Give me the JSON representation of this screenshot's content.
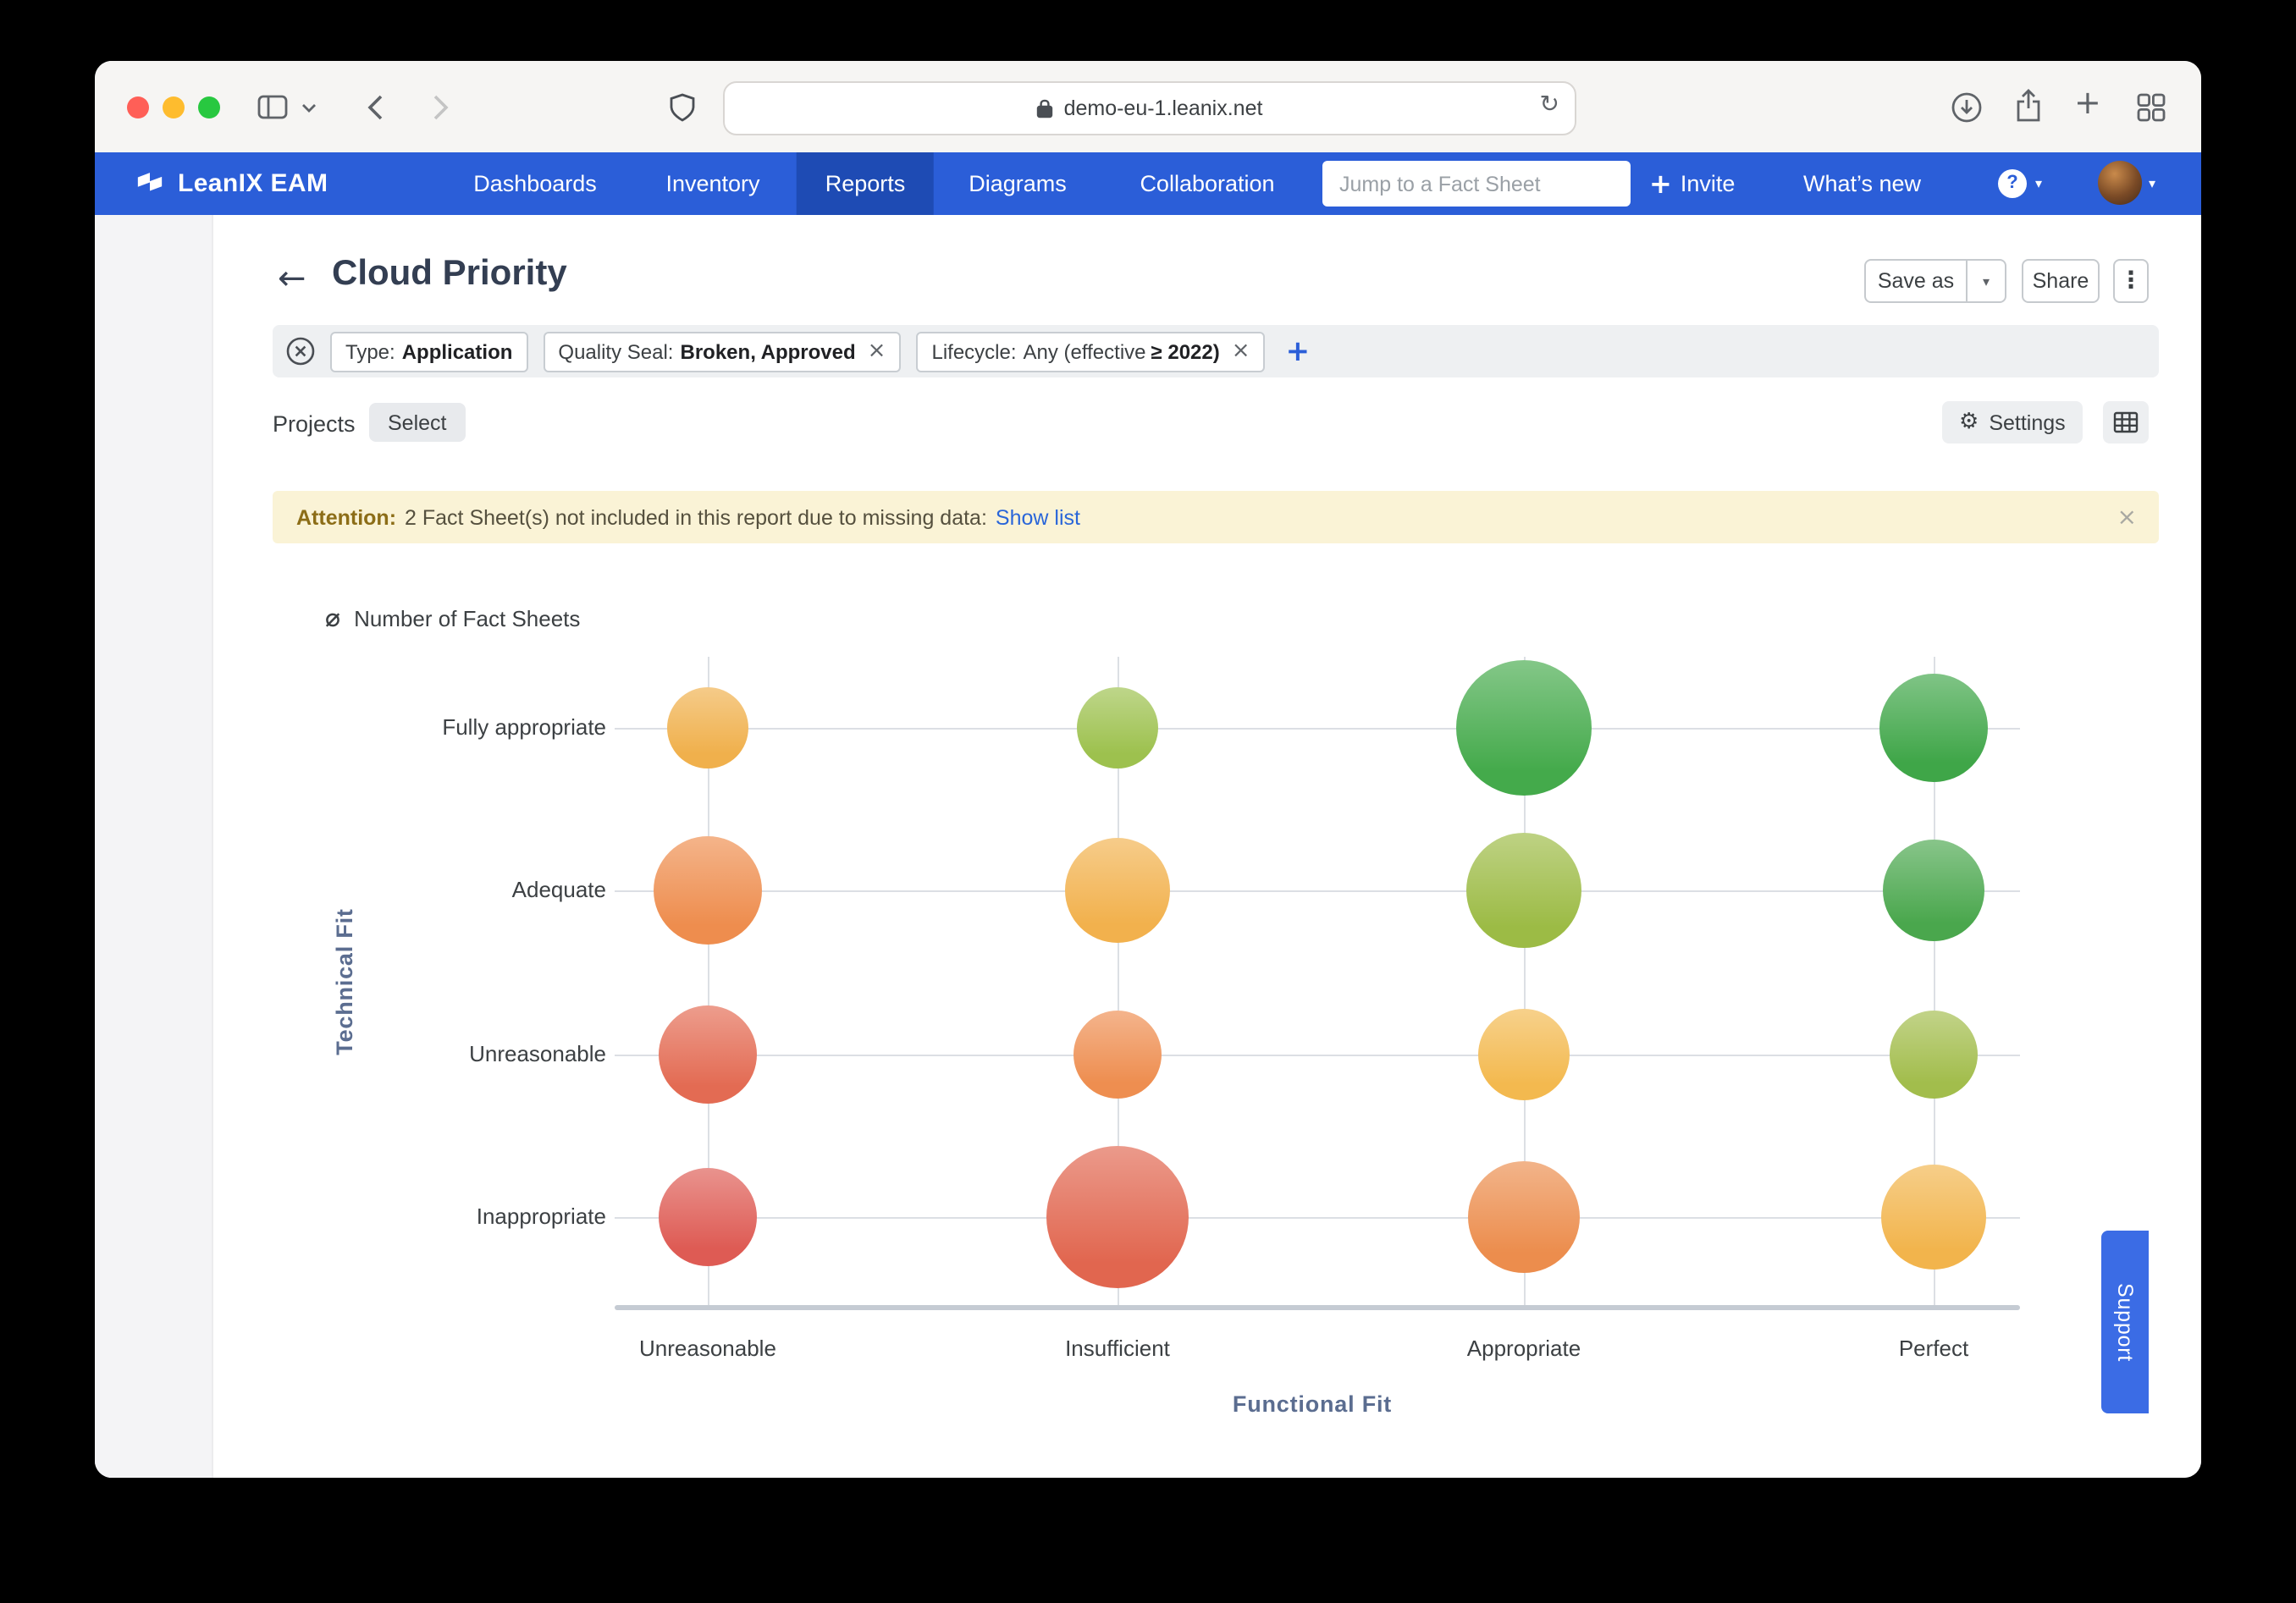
{
  "browser": {
    "url": "demo-eu-1.leanix.net"
  },
  "icons": {
    "refresh": "↻",
    "back_arrow": "←",
    "plus": "+",
    "gear": "⚙",
    "kebab": "⋮",
    "diameter": "⌀",
    "close": "×",
    "caret_down": "▾",
    "question": "?"
  },
  "colors": {
    "nav_blue": "#2b5ed8",
    "nav_active_blue": "#1e4bb4",
    "link_blue": "#2a66d9",
    "support_blue": "#3b6ce5",
    "banner_yellow": "#faf3d6"
  },
  "nav": {
    "brand": "LeanIX EAM",
    "items": [
      {
        "label": "Dashboards"
      },
      {
        "label": "Inventory"
      },
      {
        "label": "Reports"
      },
      {
        "label": "Diagrams"
      },
      {
        "label": "Collaboration"
      }
    ],
    "search_placeholder": "Jump to a Fact Sheet",
    "invite_label": "Invite",
    "whats_new_label": "What’s new"
  },
  "header": {
    "title": "Cloud Priority",
    "save_as_label": "Save as",
    "share_label": "Share"
  },
  "filters": {
    "chips": [
      {
        "label": "Type:",
        "value": "Application"
      },
      {
        "label": "Quality Seal:",
        "value": "Broken, Approved"
      },
      {
        "label": "Lifecycle:",
        "value": "Any (effective",
        "value_bold": "≥ 2022)"
      }
    ]
  },
  "subbar": {
    "projects_label": "Projects",
    "select_label": "Select",
    "settings_label": "Settings"
  },
  "banner": {
    "prefix": "Attention:",
    "text": "2 Fact Sheet(s) not included in this report due to missing data:",
    "link": "Show list"
  },
  "support_label": "Support",
  "chart_data": {
    "type": "bubble",
    "legend": "Number of Fact Sheets",
    "xlabel": "Functional Fit",
    "ylabel": "Technical Fit",
    "x_categories": [
      "Unreasonable",
      "Insufficient",
      "Appropriate",
      "Perfect"
    ],
    "y_categories": [
      "Fully appropriate",
      "Adequate",
      "Unreasonable",
      "Inappropriate"
    ],
    "bubbles": [
      {
        "x": "Unreasonable",
        "y": "Fully appropriate",
        "r": 24,
        "color": "#f0b04c"
      },
      {
        "x": "Insufficient",
        "y": "Fully appropriate",
        "r": 24,
        "color": "#9dc14e"
      },
      {
        "x": "Appropriate",
        "y": "Fully appropriate",
        "r": 40,
        "color": "#44aa4b"
      },
      {
        "x": "Perfect",
        "y": "Fully appropriate",
        "r": 32,
        "color": "#3fa648"
      },
      {
        "x": "Unreasonable",
        "y": "Adequate",
        "r": 32,
        "color": "#ee8d4e"
      },
      {
        "x": "Insufficient",
        "y": "Adequate",
        "r": 31,
        "color": "#f2b14d"
      },
      {
        "x": "Appropriate",
        "y": "Adequate",
        "r": 34,
        "color": "#9cbb45"
      },
      {
        "x": "Perfect",
        "y": "Adequate",
        "r": 30,
        "color": "#4aa74d"
      },
      {
        "x": "Unreasonable",
        "y": "Unreasonable",
        "r": 29,
        "color": "#e36b53"
      },
      {
        "x": "Insufficient",
        "y": "Unreasonable",
        "r": 26,
        "color": "#ee8e50"
      },
      {
        "x": "Appropriate",
        "y": "Unreasonable",
        "r": 27,
        "color": "#f3b94f"
      },
      {
        "x": "Perfect",
        "y": "Unreasonable",
        "r": 26,
        "color": "#a2bd4c"
      },
      {
        "x": "Unreasonable",
        "y": "Inappropriate",
        "r": 29,
        "color": "#de5b54"
      },
      {
        "x": "Insufficient",
        "y": "Inappropriate",
        "r": 42,
        "color": "#e1664f"
      },
      {
        "x": "Appropriate",
        "y": "Inappropriate",
        "r": 33,
        "color": "#ec8d4d"
      },
      {
        "x": "Perfect",
        "y": "Inappropriate",
        "r": 31,
        "color": "#f2b44c"
      }
    ]
  }
}
